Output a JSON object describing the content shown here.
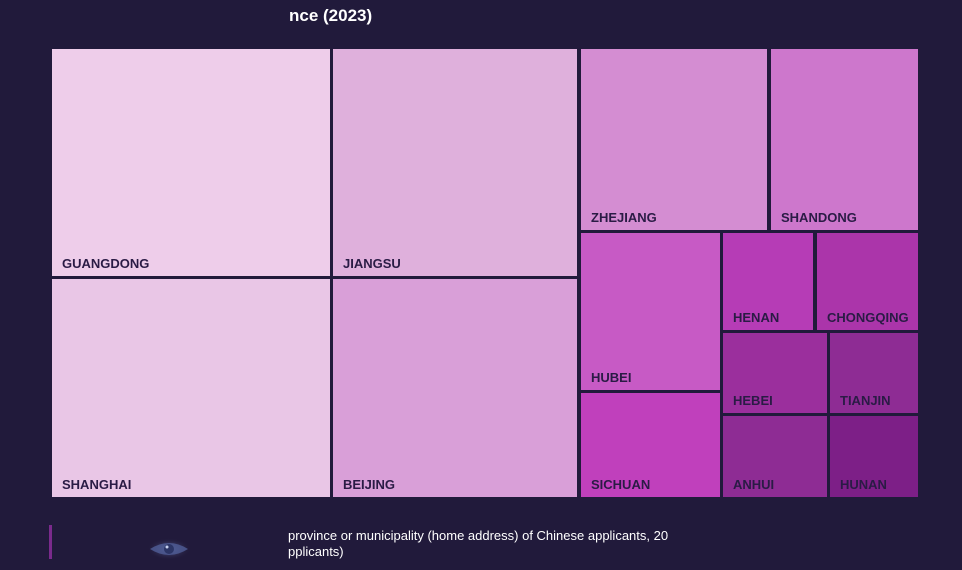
{
  "chart_data": {
    "type": "treemap",
    "title": "nce (2023)",
    "caption_lines": [
      "province or municipality (home address) of Chinese applicants, 20",
      "pplicants)"
    ],
    "items": [
      {
        "name": "GUANGDONG",
        "color": "#eecdea"
      },
      {
        "name": "SHANGHAI",
        "color": "#e9c6e6"
      },
      {
        "name": "JIANGSU",
        "color": "#dfb0dc"
      },
      {
        "name": "BEIJING",
        "color": "#d99fd8"
      },
      {
        "name": "ZHEJIANG",
        "color": "#d48dd2"
      },
      {
        "name": "SHANDONG",
        "color": "#cd77cc"
      },
      {
        "name": "HUBEI",
        "color": "#c75ac5"
      },
      {
        "name": "SICHUAN",
        "color": "#c040bc"
      },
      {
        "name": "HENAN",
        "color": "#b63cb6"
      },
      {
        "name": "CHONGQING",
        "color": "#ab35aa"
      },
      {
        "name": "HEBEI",
        "color": "#9b2f9d"
      },
      {
        "name": "TIANJIN",
        "color": "#8e2c94"
      },
      {
        "name": "ANHUI",
        "color": "#8e2c94"
      },
      {
        "name": "HUNAN",
        "color": "#7d1f87"
      }
    ]
  }
}
